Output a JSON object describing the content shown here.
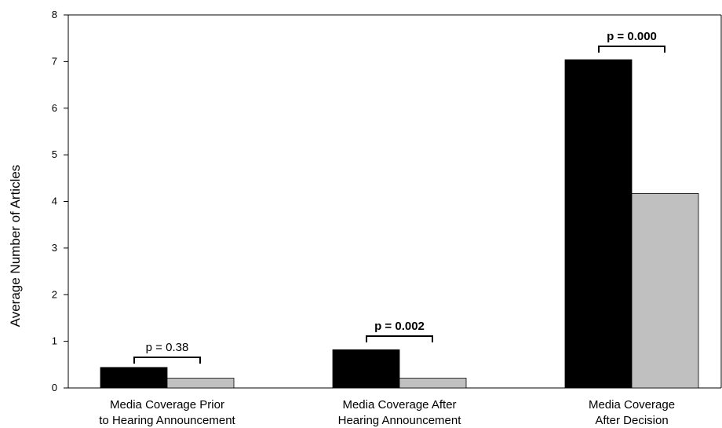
{
  "chart_data": {
    "type": "bar",
    "title": "",
    "xlabel": "",
    "ylabel": "Average Number of Articles",
    "ylim": [
      0,
      8
    ],
    "yticks": [
      "0",
      "1",
      "2",
      "3",
      "4",
      "5",
      "6",
      "7",
      "8"
    ],
    "grid": false,
    "legend": "none",
    "categories": [
      [
        "Media Coverage Prior",
        "to Hearing Announcement"
      ],
      [
        "Media Coverage After",
        "Hearing Announcement"
      ],
      [
        "Media Coverage",
        "After Decision"
      ]
    ],
    "series": [
      {
        "color": "#000000",
        "values": [
          0.44,
          0.82,
          7.04
        ]
      },
      {
        "color": "#c0c0c0",
        "values": [
          0.21,
          0.21,
          4.17
        ]
      }
    ],
    "annotations": [
      {
        "text": "p = 0.38",
        "bold": false
      },
      {
        "text": "p = 0.002",
        "bold": true
      },
      {
        "text": "p = 0.000",
        "bold": true
      }
    ]
  }
}
